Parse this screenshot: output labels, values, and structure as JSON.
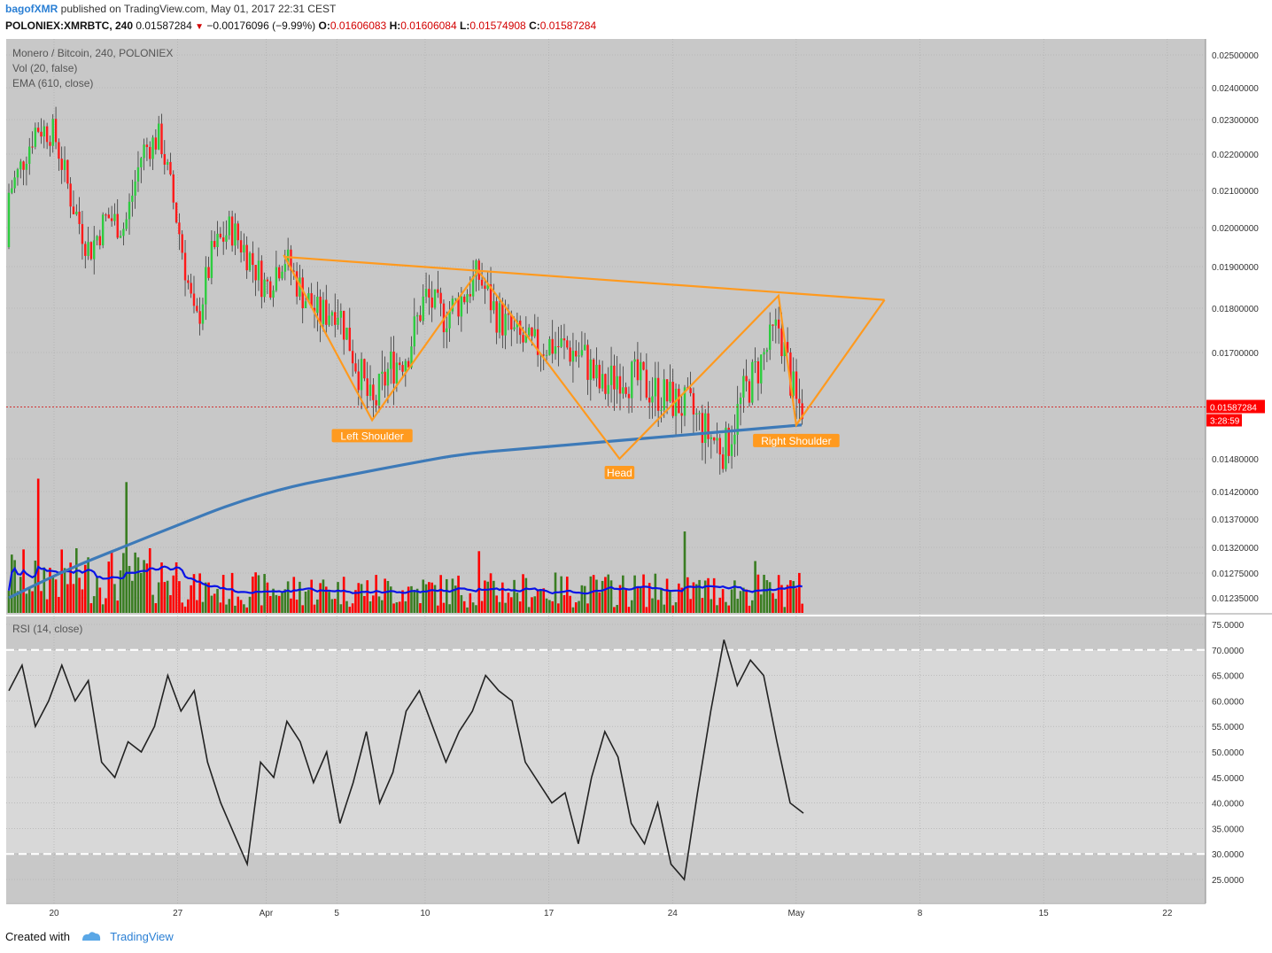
{
  "header": {
    "author": "bagofXMR",
    "published_text": "published on TradingView.com, May 01, 2017 22:31 CEST",
    "symbol": "POLONIEX:XMRBTC, 240",
    "last_price": "0.01587284",
    "change": "−0.00176096 (−9.99%)",
    "open_label": "O:",
    "open": "0.01606083",
    "high_label": "H:",
    "high": "0.01606084",
    "low_label": "L:",
    "low": "0.01574908",
    "close_label": "C:",
    "close": "0.01587284"
  },
  "footer": {
    "created_with": "Created with",
    "brand": "TradingView"
  },
  "colors": {
    "background": "#c8c8c8",
    "up": "#2ecc40",
    "down": "#ff1a1a",
    "vol_up": "#3a7d22",
    "vol_down": "#ff0000",
    "ema": "#3d7ab8",
    "vol_ma": "#0a14e6",
    "pattern": "#ff9a1f",
    "price_line": "#d40000",
    "rsi": "#222222"
  },
  "chart_data": [
    {
      "type": "candlestick",
      "title": "Monero / Bitcoin, 240, POLONIEX",
      "legend": [
        "Vol (20, false)",
        "EMA (610, close)"
      ],
      "x_ticks": [
        "20",
        "27",
        "Apr",
        "5",
        "10",
        "17",
        "24",
        "May",
        "8",
        "15",
        "22"
      ],
      "y_ticks": [
        "0.02500000",
        "0.02400000",
        "0.02300000",
        "0.02200000",
        "0.02100000",
        "0.02000000",
        "0.01900000",
        "0.01800000",
        "0.01700000",
        "0.01480000",
        "0.01420000",
        "0.01370000",
        "0.01320000",
        "0.01275000",
        "0.01235000"
      ],
      "last_price": "0.01587284",
      "countdown": "3:28:59",
      "price_path": [
        {
          "date": "Mar 16",
          "close": 0.0195
        },
        {
          "date": "Mar 18",
          "close": 0.0215
        },
        {
          "date": "Mar 19",
          "close": 0.0228
        },
        {
          "date": "Mar 20",
          "close": 0.0226
        },
        {
          "date": "Mar 21",
          "close": 0.0207
        },
        {
          "date": "Mar 22",
          "close": 0.0194
        },
        {
          "date": "Mar 23",
          "close": 0.0203
        },
        {
          "date": "Mar 24",
          "close": 0.02
        },
        {
          "date": "Mar 25",
          "close": 0.0221
        },
        {
          "date": "Mar 26",
          "close": 0.0225
        },
        {
          "date": "Mar 27",
          "close": 0.0201
        },
        {
          "date": "Mar 28",
          "close": 0.0175
        },
        {
          "date": "Mar 29",
          "close": 0.0194
        },
        {
          "date": "Mar 30",
          "close": 0.02
        },
        {
          "date": "Mar 31",
          "close": 0.0193
        },
        {
          "date": "Apr 1",
          "close": 0.0185
        },
        {
          "date": "Apr 2",
          "close": 0.0193
        },
        {
          "date": "Apr 3",
          "close": 0.0184
        },
        {
          "date": "Apr 4",
          "close": 0.0178
        },
        {
          "date": "Apr 5",
          "close": 0.0181
        },
        {
          "date": "Apr 6",
          "close": 0.0169
        },
        {
          "date": "Apr 7",
          "close": 0.0158
        },
        {
          "date": "Apr 8",
          "close": 0.0167
        },
        {
          "date": "Apr 9",
          "close": 0.017
        },
        {
          "date": "Apr 10",
          "close": 0.0183
        },
        {
          "date": "Apr 11",
          "close": 0.0178
        },
        {
          "date": "Apr 12",
          "close": 0.0182
        },
        {
          "date": "Apr 13",
          "close": 0.0188
        },
        {
          "date": "Apr 14",
          "close": 0.0179
        },
        {
          "date": "Apr 15",
          "close": 0.0174
        },
        {
          "date": "Apr 16",
          "close": 0.0171
        },
        {
          "date": "Apr 17",
          "close": 0.0172
        },
        {
          "date": "Apr 18",
          "close": 0.0171
        },
        {
          "date": "Apr 19",
          "close": 0.0169
        },
        {
          "date": "Apr 20",
          "close": 0.0162
        },
        {
          "date": "Apr 21",
          "close": 0.0166
        },
        {
          "date": "Apr 22",
          "close": 0.0164
        },
        {
          "date": "Apr 23",
          "close": 0.0162
        },
        {
          "date": "Apr 24",
          "close": 0.016
        },
        {
          "date": "Apr 25",
          "close": 0.0158
        },
        {
          "date": "Apr 26",
          "close": 0.0153
        },
        {
          "date": "Apr 27",
          "close": 0.015
        },
        {
          "date": "Apr 28",
          "close": 0.0161
        },
        {
          "date": "Apr 29",
          "close": 0.0168
        },
        {
          "date": "Apr 30",
          "close": 0.0176
        },
        {
          "date": "May 1",
          "close": 0.0159
        }
      ],
      "ema_610": [
        0.0123,
        0.0128,
        0.0132,
        0.0136,
        0.014,
        0.0143,
        0.0145,
        0.0147,
        0.0149,
        0.015,
        0.0151,
        0.0152,
        0.0153,
        0.0154,
        0.0155
      ],
      "annotations": {
        "neckline": [
          {
            "date": "Apr 2",
            "price": 0.01925
          },
          {
            "date": "May 6",
            "price": 0.0182
          }
        ],
        "pattern_path": [
          {
            "date": "Apr 2",
            "price": 0.0193
          },
          {
            "date": "Apr 7",
            "price": 0.0156
          },
          {
            "date": "Apr 13",
            "price": 0.0189
          },
          {
            "date": "Apr 21",
            "price": 0.0148
          },
          {
            "date": "Apr 30",
            "price": 0.0183
          },
          {
            "date": "May 1",
            "price": 0.0155
          },
          {
            "date": "May 6",
            "price": 0.0182
          }
        ],
        "labels": [
          "Left Shoulder",
          "Head",
          "Right Shoulder"
        ]
      }
    },
    {
      "type": "line",
      "title": "RSI (14, close)",
      "y_ticks": [
        "75.0000",
        "70.0000",
        "65.0000",
        "60.0000",
        "55.0000",
        "50.0000",
        "45.0000",
        "40.0000",
        "35.0000",
        "30.0000",
        "25.0000"
      ],
      "levels": [
        70,
        30
      ],
      "values": [
        62,
        67,
        55,
        60,
        67,
        60,
        64,
        48,
        45,
        52,
        50,
        55,
        65,
        58,
        62,
        48,
        40,
        34,
        28,
        48,
        45,
        56,
        52,
        44,
        50,
        36,
        44,
        54,
        40,
        46,
        58,
        62,
        55,
        48,
        54,
        58,
        65,
        62,
        60,
        48,
        44,
        40,
        42,
        32,
        45,
        54,
        49,
        36,
        32,
        40,
        28,
        25,
        42,
        58,
        72,
        63,
        68,
        65,
        52,
        40,
        38
      ]
    }
  ]
}
